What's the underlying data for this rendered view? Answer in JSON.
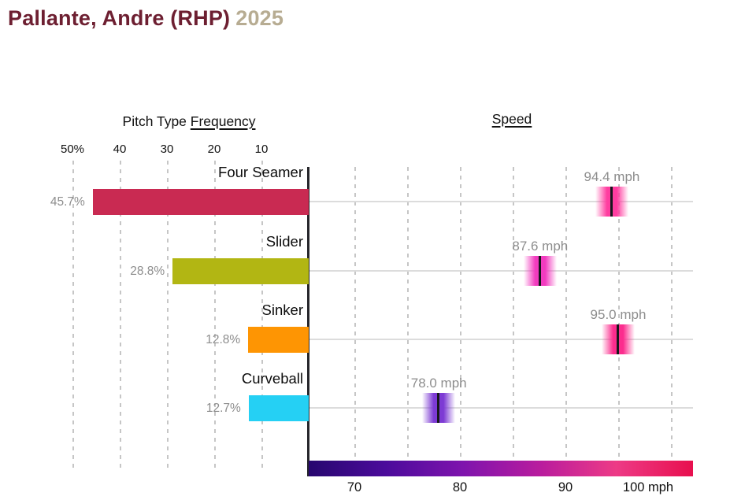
{
  "title": {
    "player": "Pallante, Andre (RHP)",
    "season": "2025"
  },
  "colors": {
    "title": "#6d1f31",
    "season": "#b7ac92",
    "axis_line": "#26262b",
    "gridline": "#c6c6c6",
    "value_text": "#8d8d8d",
    "colorbar_gradient": [
      "#27076f",
      "#4b0b9b",
      "#7e14ad",
      "#b81c9e",
      "#ed3a86",
      "#e80f4e"
    ]
  },
  "frequency_chart": {
    "header_plain": "Pitch Type",
    "header_underlined": "Frequency",
    "ticks": [
      "50%",
      "40",
      "30",
      "20",
      "10"
    ]
  },
  "speed_chart": {
    "header": "Speed",
    "ticks": [
      "70",
      "80",
      "90",
      "100 mph"
    ]
  },
  "pitches": [
    {
      "name": "Four Seamer",
      "frequency": 45.7,
      "frequency_label": "45.7%",
      "speed": 94.4,
      "speed_label": "94.4 mph",
      "bar_color": "#c92a52",
      "marker_color": "#ff3da0"
    },
    {
      "name": "Slider",
      "frequency": 28.8,
      "frequency_label": "28.8%",
      "speed": 87.6,
      "speed_label": "87.6 mph",
      "bar_color": "#b2b613",
      "marker_color": "#f23bbf"
    },
    {
      "name": "Sinker",
      "frequency": 12.8,
      "frequency_label": "12.8%",
      "speed": 95.0,
      "speed_label": "95.0 mph",
      "bar_color": "#fe9503",
      "marker_color": "#fb2d8e"
    },
    {
      "name": "Curveball",
      "frequency": 12.7,
      "frequency_label": "12.7%",
      "speed": 78.0,
      "speed_label": "78.0 mph",
      "bar_color": "#25d0f4",
      "marker_color": "#7d3bd4"
    }
  ],
  "chart_data": [
    {
      "type": "bar",
      "orientation": "horizontal",
      "title": "Pitch Type Frequency",
      "categories": [
        "Four Seamer",
        "Slider",
        "Sinker",
        "Curveball"
      ],
      "values": [
        45.7,
        28.8,
        12.8,
        12.7
      ],
      "value_unit": "%",
      "axis_ticks": [
        "50%",
        "40",
        "30",
        "20",
        "10"
      ],
      "xlim": [
        0,
        50
      ],
      "axis_reversed": true,
      "bar_colors": [
        "#c92a52",
        "#b2b613",
        "#fe9503",
        "#25d0f4"
      ],
      "grid": "dashed-vertical"
    },
    {
      "type": "scatter",
      "title": "Speed",
      "categories": [
        "Four Seamer",
        "Slider",
        "Sinker",
        "Curveball"
      ],
      "values": [
        94.4,
        87.6,
        95.0,
        78.0
      ],
      "value_unit": "mph",
      "axis_ticks": [
        "70",
        "80",
        "90",
        "100 mph"
      ],
      "xlim": [
        65.5,
        102
      ],
      "marker_colors": [
        "#ff3da0",
        "#f23bbf",
        "#fb2d8e",
        "#7d3bd4"
      ],
      "colorbar": true,
      "legend": "none",
      "grid": "dashed-vertical"
    }
  ]
}
